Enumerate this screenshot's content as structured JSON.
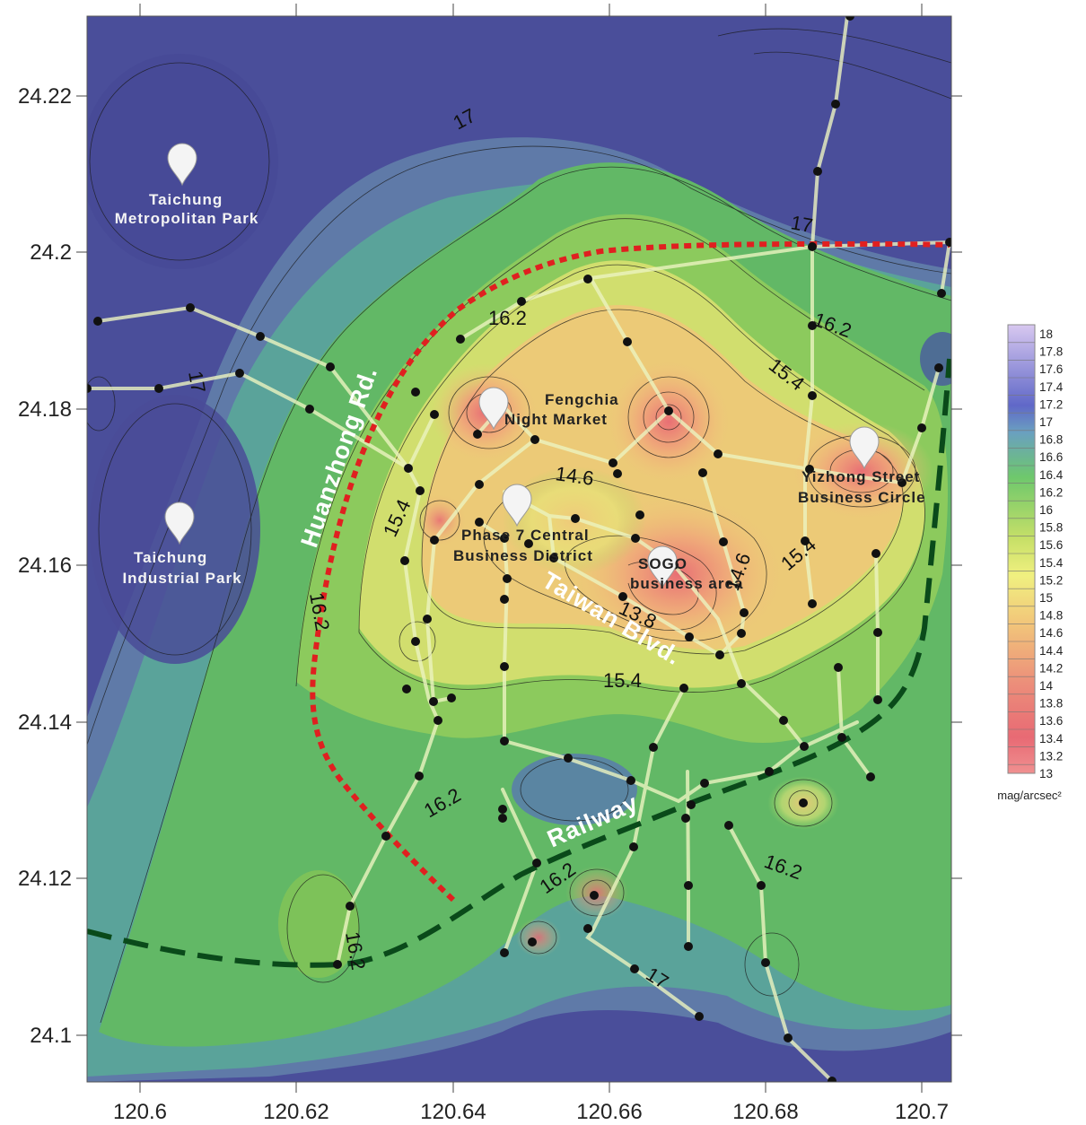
{
  "axes": {
    "x_ticks": [
      "120.6",
      "120.62",
      "120.64",
      "120.66",
      "120.68",
      "120.7"
    ],
    "y_ticks": [
      "24.22",
      "24.2",
      "24.18",
      "24.16",
      "24.14",
      "24.12",
      "24.1"
    ]
  },
  "contour_labels": {
    "c17_north": "17",
    "c17_northeast": "17",
    "c17_west": "17",
    "c17_south": "17",
    "c162_north": "16.2",
    "c162_east": "16.2",
    "c162_west": "16.2",
    "c162_sw": "16.2",
    "c162_south": "16.2",
    "c162_se": "16.2",
    "c162_bottom": "16.2",
    "c154_east": "15.4",
    "c154_east2": "15.4",
    "c154_west": "15.4",
    "c154_south": "15.4",
    "c146_center": "14.6",
    "c146_east": "14.6",
    "c138_center": "13.8"
  },
  "places": {
    "metropolitan_park": [
      "Taichung",
      "Metropolitan Park"
    ],
    "industrial_park": [
      "Taichung",
      "Industrial  Park"
    ],
    "fengchia": [
      "Fengchia",
      "Night Market"
    ],
    "phase7": [
      "Phase 7 Central",
      "Business District"
    ],
    "sogo": [
      "SOGO",
      "business area"
    ],
    "yizhong": [
      "Yizhong Street",
      "Business Circle"
    ]
  },
  "road_labels": {
    "huanzhong": "Huanzhong Rd.",
    "taiwan_blvd": "Taiwan Blvd.",
    "railway": "Railway"
  },
  "legend": {
    "values": [
      "18",
      "17.8",
      "17.6",
      "17.4",
      "17.2",
      "17",
      "16.8",
      "16.6",
      "16.4",
      "16.2",
      "16",
      "15.8",
      "15.6",
      "15.4",
      "15.2",
      "15",
      "14.8",
      "14.6",
      "14.4",
      "14.2",
      "14",
      "13.8",
      "13.6",
      "13.4",
      "13.2",
      "13"
    ],
    "colors": [
      "#d8c8f0",
      "#b8a8ec",
      "#9a90e0",
      "#7a78d4",
      "#6068c8",
      "#5a7cc0",
      "#6aa0c0",
      "#78c0b0",
      "#70c890",
      "#6ec86c",
      "#80d060",
      "#a8d860",
      "#c8e068",
      "#e0e878",
      "#f0f080",
      "#f4dc7c",
      "#f2c87a",
      "#f0b47a",
      "#eea07a",
      "#ec8e7a",
      "#ea7c7a",
      "#e86e76",
      "#e86a74",
      "#e87070",
      "#ec7c7c",
      "#f09090"
    ],
    "unit": "mag/arcsec²"
  },
  "colors": {
    "huanzhong_road": "#e02020",
    "railway": "#0a4a1a",
    "measurement_point": "#111111"
  }
}
